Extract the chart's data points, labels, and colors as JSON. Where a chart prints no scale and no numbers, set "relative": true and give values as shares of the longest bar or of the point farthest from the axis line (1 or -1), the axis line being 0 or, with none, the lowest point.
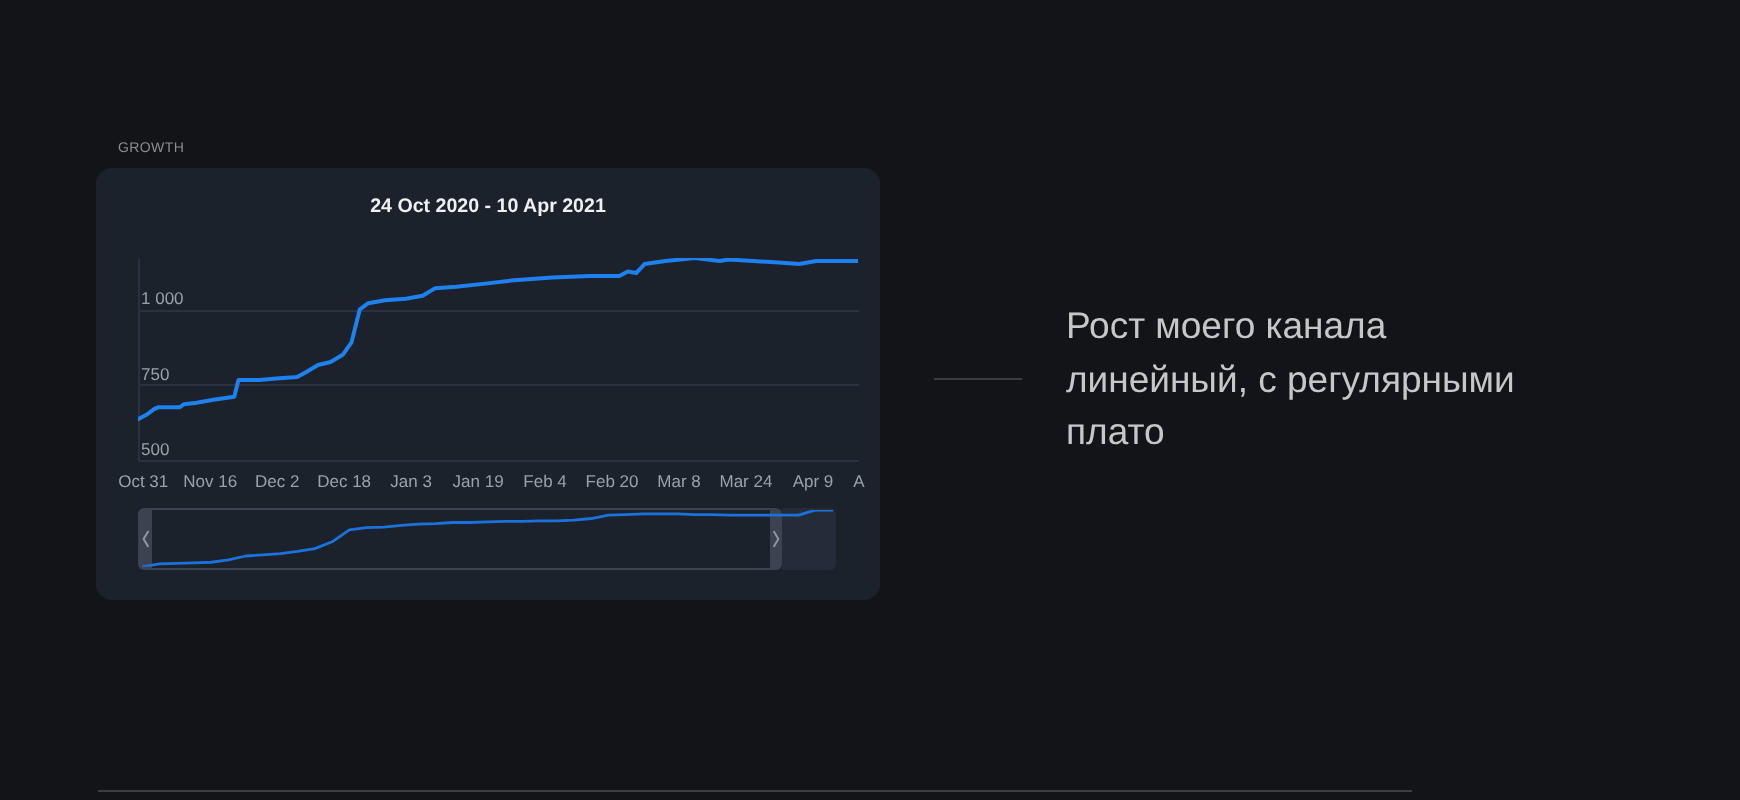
{
  "chart_data": [
    {
      "type": "line",
      "title": "GROWTH",
      "subtitle": "24 Oct 2020 - 10 Apr 2021",
      "annotations": [
        "Рост моего канала линейный, с регулярными плато"
      ],
      "x": [
        "2020-10-30",
        "2020-11-01",
        "2020-11-03",
        "2020-11-04",
        "2020-11-09",
        "2020-11-10",
        "2020-11-13",
        "2020-11-17",
        "2020-11-22",
        "2020-11-23",
        "2020-11-28",
        "2020-12-02",
        "2020-12-07",
        "2020-12-09",
        "2020-12-12",
        "2020-12-15",
        "2020-12-18",
        "2020-12-19",
        "2020-12-20",
        "2020-12-21",
        "2020-12-22",
        "2020-12-24",
        "2020-12-28",
        "2021-01-02",
        "2021-01-06",
        "2021-01-09",
        "2021-01-14",
        "2021-01-21",
        "2021-01-27",
        "2021-02-06",
        "2021-02-15",
        "2021-02-22",
        "2021-02-24",
        "2021-02-26",
        "2021-02-28",
        "2021-03-05",
        "2021-03-12",
        "2021-03-15",
        "2021-03-18",
        "2021-03-20",
        "2021-03-26",
        "2021-04-01",
        "2021-04-06",
        "2021-04-10",
        "2021-04-20"
      ],
      "values": [
        635,
        650,
        670,
        675,
        675,
        685,
        690,
        700,
        710,
        765,
        765,
        770,
        775,
        790,
        815,
        825,
        850,
        870,
        890,
        945,
        1000,
        1020,
        1030,
        1035,
        1045,
        1070,
        1075,
        1085,
        1095,
        1105,
        1110,
        1110,
        1125,
        1120,
        1150,
        1160,
        1170,
        1165,
        1160,
        1165,
        1160,
        1155,
        1150,
        1160,
        1160
      ],
      "color": "#1f80f0",
      "xlim": [
        "2020-10-30",
        "2021-04-20"
      ],
      "xticks": [
        {
          "value": "2020-10-31",
          "label": "Oct 31"
        },
        {
          "value": "2020-11-16",
          "label": "Nov 16"
        },
        {
          "value": "2020-12-02",
          "label": "Dec 2"
        },
        {
          "value": "2020-12-18",
          "label": "Dec 18"
        },
        {
          "value": "2021-01-03",
          "label": "Jan 3"
        },
        {
          "value": "2021-01-19",
          "label": "Jan 19"
        },
        {
          "value": "2021-02-04",
          "label": "Feb 4"
        },
        {
          "value": "2021-02-20",
          "label": "Feb 20"
        },
        {
          "value": "2021-03-08",
          "label": "Mar 8"
        },
        {
          "value": "2021-03-24",
          "label": "Mar 24"
        },
        {
          "value": "2021-04-09",
          "label": "Apr 9"
        },
        {
          "value": "2021-04-20",
          "label": "A"
        }
      ],
      "ylim": [
        500,
        1170
      ],
      "yticks": [
        500,
        750,
        {
          "value": 1000,
          "label": "1 000"
        }
      ],
      "grid": "y"
    },
    {
      "type": "line",
      "relative": true,
      "categories": [
        null,
        null,
        null,
        null,
        null,
        null,
        null,
        null,
        null,
        null,
        null,
        null,
        null,
        null,
        null,
        null,
        null,
        null,
        null,
        null,
        null,
        null,
        null,
        null,
        null,
        null,
        null,
        null,
        null,
        null,
        null,
        null,
        null,
        null,
        null,
        null,
        null,
        null,
        null,
        null,
        null
      ],
      "values": [
        0,
        0.05,
        0.06,
        0.07,
        0.08,
        0.12,
        0.19,
        0.21,
        0.23,
        0.27,
        0.32,
        0.44,
        0.65,
        0.69,
        0.7,
        0.73,
        0.75,
        0.76,
        0.78,
        0.78,
        0.79,
        0.8,
        0.8,
        0.81,
        0.81,
        0.82,
        0.85,
        0.91,
        0.92,
        0.93,
        0.93,
        0.93,
        0.92,
        0.92,
        0.91,
        0.91,
        0.91,
        0.91,
        0.91,
        1,
        1
      ],
      "color": "#1b72db"
    }
  ]
}
